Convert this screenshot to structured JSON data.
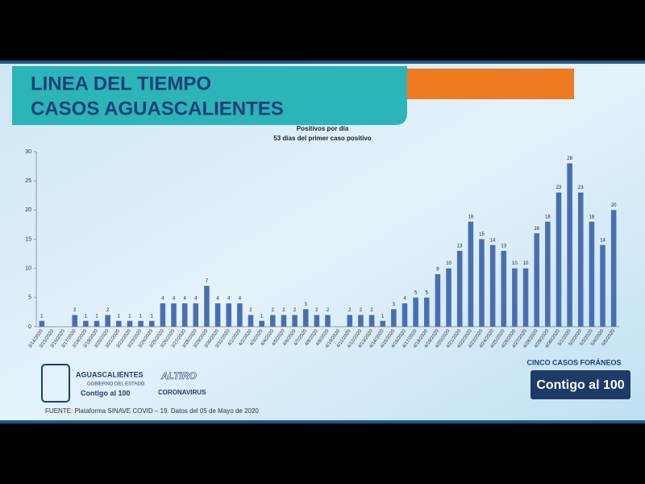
{
  "header": {
    "title_lines": [
      "LINEA DEL TIEMPO",
      "CASOS AGUASCALIENTES"
    ]
  },
  "chart_data": {
    "type": "bar",
    "title": "Positivos por día",
    "subtitle": "53 días del primer caso positivo",
    "categories": [
      "3/14/2020",
      "3/15/2020",
      "3/16/2020",
      "3/17/2020",
      "3/18/2020",
      "3/19/2020",
      "3/20/2020",
      "3/21/2020",
      "3/22/2020",
      "3/23/2020",
      "3/24/2020",
      "3/25/2020",
      "3/26/2020",
      "3/27/2020",
      "3/28/2020",
      "3/29/2020",
      "3/30/2020",
      "3/31/2020",
      "4/1/2020",
      "4/2/2020",
      "4/3/2020",
      "4/4/2020",
      "4/5/2020",
      "4/6/2020",
      "4/7/2020",
      "4/8/2020",
      "4/9/2020",
      "4/10/2020",
      "4/11/2020",
      "4/12/2020",
      "4/13/2020",
      "4/14/2020",
      "4/15/2020",
      "4/16/2020",
      "4/17/2020",
      "4/18/2020",
      "4/19/2020",
      "4/20/2020",
      "4/21/2020",
      "4/22/2020",
      "4/23/2020",
      "4/24/2020",
      "4/25/2020",
      "4/26/2020",
      "4/27/2020",
      "4/28/2020",
      "4/29/2020",
      "4/30/2020",
      "5/1/2020",
      "5/2/2020",
      "5/3/2020",
      "5/4/2020",
      "5/5/2020"
    ],
    "values": [
      1,
      0,
      0,
      2,
      1,
      1,
      2,
      1,
      1,
      1,
      1,
      4,
      4,
      4,
      4,
      7,
      4,
      4,
      4,
      2,
      1,
      2,
      2,
      2,
      3,
      2,
      2,
      0,
      2,
      2,
      2,
      1,
      3,
      4,
      5,
      5,
      9,
      10,
      13,
      18,
      15,
      14,
      13,
      10,
      10,
      16,
      18,
      23,
      28,
      23,
      18,
      14,
      20
    ],
    "color": "#4a6fb0",
    "ylim": [
      0,
      30
    ],
    "yticks": [
      0,
      5,
      10,
      15,
      20,
      25,
      30
    ],
    "grid": false
  },
  "footer": {
    "source": "FUENTE: Plataforma SINAVE COVID – 19. Datos del 05 de Mayo de 2020",
    "note": "CINCO CASOS FORÁNEOS",
    "logo_state": "AGUASCALIENTES",
    "logo_state_sub": "GOBIERNO DEL ESTADO",
    "logo_slogan": "Contigo al 100",
    "logo_campaign": "ALTIRO",
    "logo_campaign_sub": "CORONAVIRUS",
    "badge": "Contigo al 100"
  }
}
